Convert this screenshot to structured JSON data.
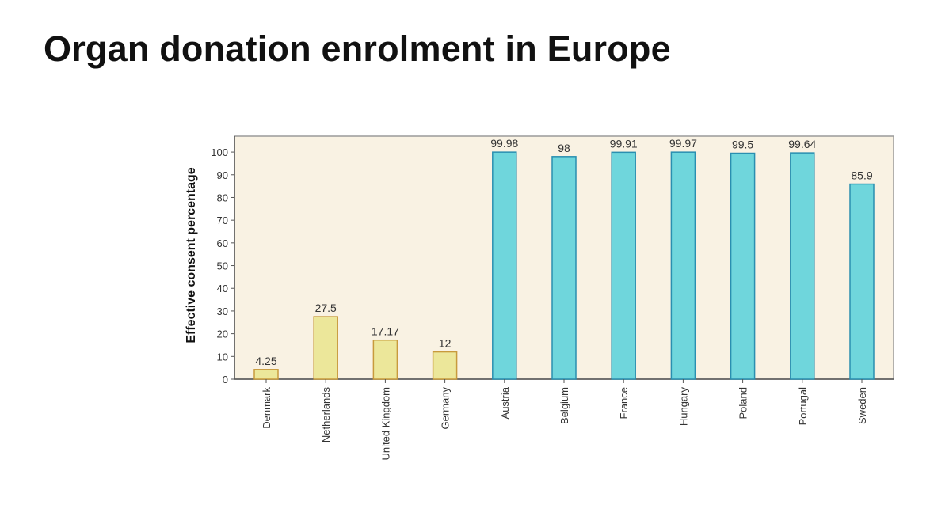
{
  "slide": {
    "title": "Organ donation enrolment in Europe"
  },
  "chart_data": {
    "type": "bar",
    "title": "",
    "xlabel": "",
    "ylabel": "Effective consent percentage",
    "ylim": [
      0,
      107
    ],
    "yticks": [
      0,
      10,
      20,
      30,
      40,
      50,
      60,
      70,
      80,
      90,
      100
    ],
    "grid": false,
    "categories": [
      "Denmark",
      "Netherlands",
      "United Kingdom",
      "Germany",
      "Austria",
      "Belgium",
      "France",
      "Hungary",
      "Poland",
      "Portugal",
      "Sweden"
    ],
    "values": [
      4.25,
      27.5,
      17.17,
      12,
      99.98,
      98,
      99.91,
      99.97,
      99.5,
      99.64,
      85.9
    ],
    "value_labels": [
      "4.25",
      "27.5",
      "17.17",
      "12",
      "99.98",
      "98",
      "99.91",
      "99.97",
      "99.5",
      "99.64",
      "85.9"
    ],
    "group_colors": {
      "opt_in": {
        "fill": "#ece79a",
        "stroke": "#c89a3c",
        "members": [
          "Denmark",
          "Netherlands",
          "United Kingdom",
          "Germany"
        ]
      },
      "opt_out": {
        "fill": "#6fd6dc",
        "stroke": "#2a8fb0",
        "members": [
          "Austria",
          "Belgium",
          "France",
          "Hungary",
          "Poland",
          "Portugal",
          "Sweden"
        ]
      }
    },
    "plot_background": "#f9f2e3"
  }
}
